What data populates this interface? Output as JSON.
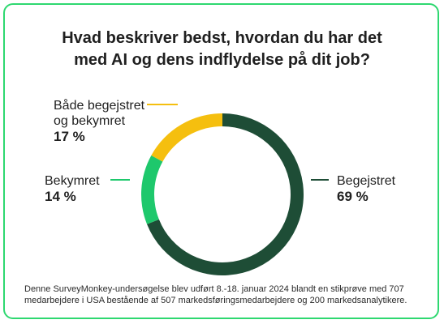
{
  "chart_data": {
    "type": "pie",
    "title_lines": [
      "Hvad beskriver bedst, hvordan du har det",
      "med AI og dens indflydelse på dit job?"
    ],
    "slices": [
      {
        "label_lines": [
          "Begejstret"
        ],
        "value": 69,
        "value_label": "69 %",
        "color": "#1e4d36"
      },
      {
        "label_lines": [
          "Bekymret"
        ],
        "value": 14,
        "value_label": "14 %",
        "color": "#1ec86c"
      },
      {
        "label_lines": [
          "Både begejstret",
          "og bekymret"
        ],
        "value": 17,
        "value_label": "17 %",
        "color": "#f5bf0f"
      }
    ],
    "donut": true,
    "legend": "callouts"
  },
  "footnote": {
    "line1": "Denne SurveyMonkey-undersøgelse blev udført 8.-18. januar 2024 blandt en stikprøve med 707",
    "line2": "medarbejdere i USA bestående af 507 markedsføringsmedarbejdere og 200 markedsanalytikere."
  },
  "theme": {
    "border": "#2ed870"
  }
}
